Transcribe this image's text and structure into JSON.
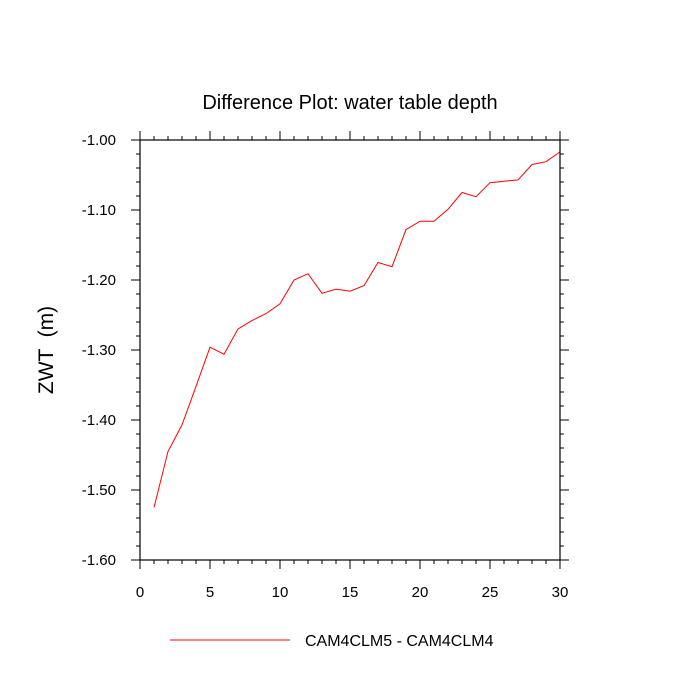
{
  "chart_data": {
    "type": "line",
    "title": "Difference Plot: water table depth",
    "xlabel": "",
    "ylabel": "ZWT  (m)",
    "xlim": [
      0,
      30
    ],
    "ylim": [
      -1.6,
      -1.0
    ],
    "x_ticks": [
      0,
      5,
      10,
      15,
      20,
      25,
      30
    ],
    "x_tick_labels": [
      "0",
      "5",
      "10",
      "15",
      "20",
      "25",
      "30"
    ],
    "y_ticks": [
      -1.6,
      -1.5,
      -1.4,
      -1.3,
      -1.2,
      -1.1,
      -1.0
    ],
    "y_tick_labels": [
      "-1.60",
      "-1.50",
      "-1.40",
      "-1.30",
      "-1.20",
      "-1.10",
      "-1.00"
    ],
    "grid": false,
    "legend_position": "bottom-center",
    "series": [
      {
        "name": "CAM4CLM5 - CAM4CLM4",
        "color": "#ff0000",
        "x": [
          1,
          2,
          3,
          4,
          5,
          6,
          7,
          8,
          9,
          10,
          11,
          12,
          13,
          14,
          15,
          16,
          17,
          18,
          19,
          20,
          21,
          22,
          23,
          24,
          25,
          26,
          27,
          28,
          29,
          30
        ],
        "y": [
          -1.525,
          -1.445,
          -1.407,
          -1.352,
          -1.296,
          -1.306,
          -1.27,
          -1.258,
          -1.248,
          -1.234,
          -1.2,
          -1.191,
          -1.219,
          -1.213,
          -1.216,
          -1.208,
          -1.175,
          -1.181,
          -1.128,
          -1.116,
          -1.116,
          -1.099,
          -1.075,
          -1.081,
          -1.061,
          -1.059,
          -1.057,
          -1.035,
          -1.031,
          -1.017
        ]
      }
    ]
  }
}
